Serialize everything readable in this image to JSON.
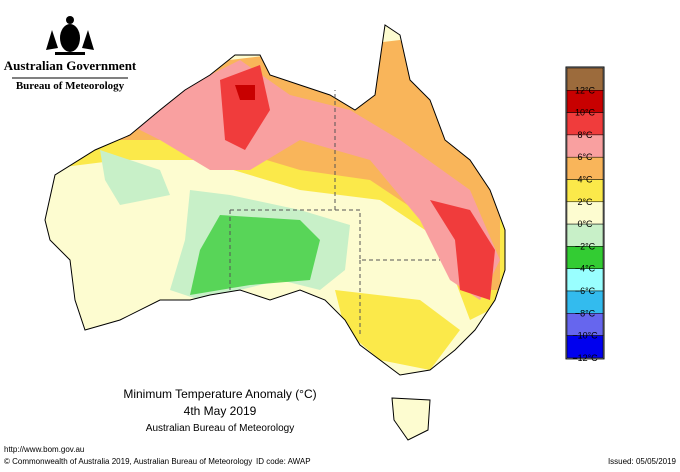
{
  "header": {
    "government": "Australian Government",
    "bureau": "Bureau of Meteorology"
  },
  "legend": {
    "colors": [
      "#9c6b3c",
      "#c80000",
      "#f03c3c",
      "#f9a0a0",
      "#f9b55a",
      "#fbe94a",
      "#fdfcd0",
      "#c8f0c8",
      "#33cc33",
      "#99ffff",
      "#33bbee",
      "#6666ee",
      "#0000ee"
    ],
    "labels": [
      "12°C",
      "10°C",
      "8°C",
      "6°C",
      "4°C",
      "2°C",
      "0°C",
      "−2°C",
      "−4°C",
      "−6°C",
      "−8°C",
      "−10°C",
      "−12°C"
    ]
  },
  "caption": {
    "title": "Minimum Temperature Anomaly (°C)",
    "date": "4th May 2019",
    "source": "Australian Bureau of Meteorology"
  },
  "footer": {
    "url": "http://www.bom.gov.au",
    "copyright": "© Commonwealth of Australia 2019, Australian Bureau of Meteorology",
    "id_code": "ID code: AWAP",
    "issued": "Issued: 05/05/2019"
  }
}
